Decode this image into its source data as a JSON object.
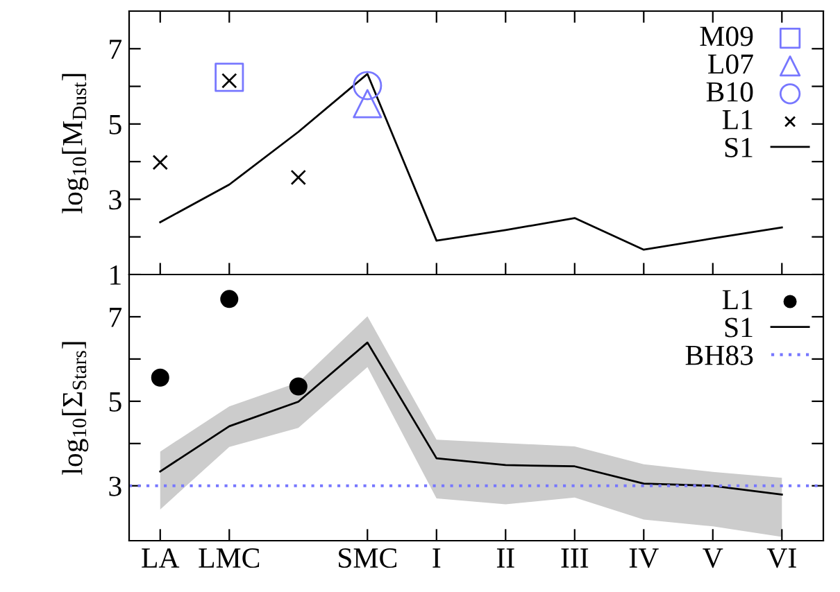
{
  "chart_data": [
    {
      "type": "line",
      "ylabel": "log$_{10}$[M$_{Dust}$]",
      "ylim": [
        1,
        8
      ],
      "categories": [
        null,
        null,
        null,
        null,
        null,
        null,
        null,
        null,
        null,
        null
      ],
      "yticks": [
        1,
        {
          "value": 2,
          "label": null
        },
        3,
        {
          "value": 4,
          "label": null
        },
        5,
        {
          "value": 6,
          "label": null
        },
        7
      ],
      "tick_labels": "y",
      "legend": "top right",
      "series": [
        {
          "name": "M09",
          "type": "scatter",
          "marker": "square",
          "color": "#7777ff",
          "values": [
            null,
            6.24,
            null,
            null,
            null,
            null,
            null,
            null,
            null,
            null
          ]
        },
        {
          "name": "L07",
          "type": "scatter",
          "marker": "triangle",
          "color": "#7777ff",
          "values": [
            null,
            null,
            null,
            5.54,
            null,
            null,
            null,
            null,
            null,
            null
          ]
        },
        {
          "name": "B10",
          "type": "scatter",
          "marker": "circle",
          "color": "#7777ff",
          "values": [
            null,
            null,
            null,
            6.02,
            null,
            null,
            null,
            null,
            null,
            null
          ]
        },
        {
          "name": "L1",
          "type": "scatter",
          "marker": "cross",
          "color": "#000000",
          "values": [
            3.98,
            6.15,
            3.58,
            null,
            null,
            null,
            null,
            null,
            null,
            null
          ]
        },
        {
          "name": "S1",
          "color": "#000000",
          "values": [
            2.39,
            3.39,
            4.79,
            6.33,
            1.9,
            2.18,
            2.5,
            1.66,
            1.96,
            2.25
          ]
        }
      ]
    },
    {
      "type": "line",
      "ylabel": "log$_{10}$[Σ$_{Stars}$]",
      "ylim": [
        1.7,
        8
      ],
      "categories": [
        "LA",
        "LMC",
        null,
        "SMC",
        "I",
        "II",
        "III",
        "IV",
        "V",
        "VI"
      ],
      "yticks": [
        3,
        {
          "value": 4,
          "label": null
        },
        5,
        {
          "value": 6,
          "label": null
        },
        7
      ],
      "legend": "top right",
      "ref_lines": [
        {
          "axis": "y",
          "value": 3,
          "label": "BH83",
          "color": "#7777ff",
          "line_style": "dotted"
        }
      ],
      "series": [
        {
          "name": "L1",
          "type": "scatter",
          "marker": "circle",
          "color": "#000000",
          "values": [
            5.56,
            7.42,
            5.35,
            null,
            null,
            null,
            null,
            null,
            null,
            null
          ]
        },
        {
          "name": "S1",
          "color": "#000000",
          "values": [
            3.34,
            4.41,
            4.99,
            6.39,
            3.65,
            3.49,
            3.46,
            3.05,
            3.0,
            2.79
          ],
          "lower": [
            2.44,
            3.92,
            4.37,
            5.81,
            2.7,
            2.56,
            2.72,
            2.2,
            2.04,
            1.79
          ],
          "upper": [
            3.81,
            4.88,
            5.45,
            7.01,
            4.09,
            4.01,
            3.93,
            3.51,
            3.33,
            3.19
          ]
        }
      ]
    }
  ]
}
